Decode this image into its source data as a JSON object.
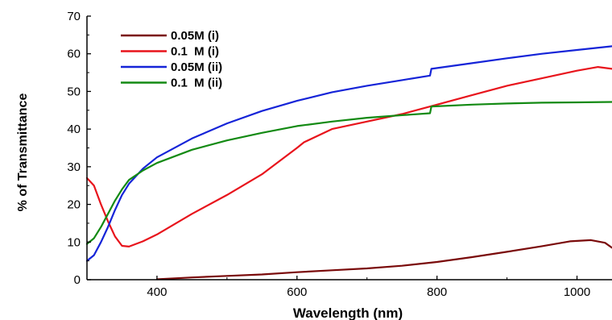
{
  "chart_data": {
    "type": "line",
    "title": "",
    "xlabel": "Wavelength (nm)",
    "ylabel": "% of Transmittance",
    "xlim": [
      300,
      1050
    ],
    "ylim": [
      0,
      70
    ],
    "x_ticks": [
      400,
      600,
      800,
      1000
    ],
    "y_ticks": [
      0,
      10,
      20,
      30,
      40,
      50,
      60,
      70
    ],
    "grid": false,
    "legend_position": "top-left",
    "series": [
      {
        "name": "0.05M (i)",
        "color": "#7a0a0a",
        "points": [
          [
            400,
            0.1
          ],
          [
            450,
            0.6
          ],
          [
            500,
            1.0
          ],
          [
            550,
            1.4
          ],
          [
            600,
            2.0
          ],
          [
            650,
            2.5
          ],
          [
            700,
            3.0
          ],
          [
            750,
            3.7
          ],
          [
            800,
            4.7
          ],
          [
            850,
            6.0
          ],
          [
            900,
            7.4
          ],
          [
            950,
            8.9
          ],
          [
            990,
            10.2
          ],
          [
            1020,
            10.5
          ],
          [
            1040,
            9.8
          ],
          [
            1050,
            8.5
          ]
        ]
      },
      {
        "name": "0.1  M (i)",
        "color": "#e8141c",
        "points": [
          [
            300,
            27
          ],
          [
            310,
            25
          ],
          [
            320,
            20
          ],
          [
            330,
            15.5
          ],
          [
            340,
            11.5
          ],
          [
            350,
            9.0
          ],
          [
            360,
            8.8
          ],
          [
            380,
            10.2
          ],
          [
            400,
            12.0
          ],
          [
            450,
            17.5
          ],
          [
            500,
            22.5
          ],
          [
            550,
            28.0
          ],
          [
            600,
            35.0
          ],
          [
            610,
            36.5
          ],
          [
            650,
            40.0
          ],
          [
            700,
            42.0
          ],
          [
            750,
            44.0
          ],
          [
            800,
            46.5
          ],
          [
            850,
            49.0
          ],
          [
            900,
            51.5
          ],
          [
            950,
            53.5
          ],
          [
            1000,
            55.5
          ],
          [
            1030,
            56.5
          ],
          [
            1050,
            56.0
          ]
        ]
      },
      {
        "name": "0.05M (ii)",
        "color": "#1524d8",
        "points": [
          [
            300,
            5.0
          ],
          [
            310,
            6.5
          ],
          [
            320,
            10.0
          ],
          [
            330,
            14.0
          ],
          [
            340,
            18.5
          ],
          [
            350,
            22.5
          ],
          [
            360,
            25.5
          ],
          [
            380,
            29.5
          ],
          [
            400,
            32.5
          ],
          [
            450,
            37.5
          ],
          [
            500,
            41.5
          ],
          [
            550,
            44.8
          ],
          [
            600,
            47.5
          ],
          [
            650,
            49.8
          ],
          [
            700,
            51.5
          ],
          [
            750,
            53.0
          ],
          [
            790,
            54.2
          ],
          [
            792,
            56.0
          ],
          [
            850,
            57.5
          ],
          [
            900,
            58.8
          ],
          [
            950,
            60.0
          ],
          [
            1000,
            61.0
          ],
          [
            1050,
            62.0
          ]
        ]
      },
      {
        "name": "0.1  M (ii)",
        "color": "#138a13",
        "points": [
          [
            300,
            9.5
          ],
          [
            310,
            11.0
          ],
          [
            320,
            14.0
          ],
          [
            330,
            17.5
          ],
          [
            340,
            21.0
          ],
          [
            350,
            24.0
          ],
          [
            360,
            26.5
          ],
          [
            380,
            29.0
          ],
          [
            400,
            31.0
          ],
          [
            450,
            34.5
          ],
          [
            500,
            37.0
          ],
          [
            550,
            39.0
          ],
          [
            600,
            40.8
          ],
          [
            650,
            42.0
          ],
          [
            700,
            43.0
          ],
          [
            750,
            43.7
          ],
          [
            790,
            44.2
          ],
          [
            792,
            46.0
          ],
          [
            850,
            46.5
          ],
          [
            900,
            46.8
          ],
          [
            950,
            47.0
          ],
          [
            1000,
            47.1
          ],
          [
            1050,
            47.2
          ]
        ]
      }
    ]
  }
}
